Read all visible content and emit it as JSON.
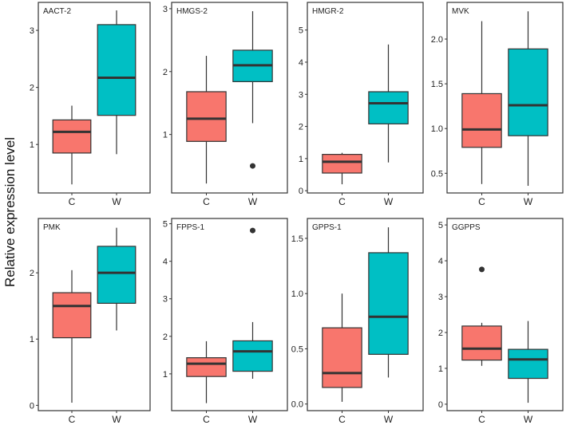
{
  "chart_data": {
    "type": "boxplot",
    "ylabel": "Relative expression level",
    "categories": [
      "C",
      "W"
    ],
    "colors": {
      "C": "#F8766D",
      "W": "#00BFC4"
    },
    "panels": [
      {
        "title": "AACT-2",
        "ylim": [
          0.15,
          3.49
        ],
        "ticks": [
          1,
          2,
          3
        ],
        "tick_labels": [
          "1",
          "2",
          "3"
        ],
        "boxes": [
          {
            "group": "C",
            "low": 0.3,
            "q1": 0.85,
            "median": 1.22,
            "q3": 1.43,
            "high": 1.68,
            "outliers": []
          },
          {
            "group": "W",
            "low": 0.83,
            "q1": 1.51,
            "median": 2.17,
            "q3": 3.1,
            "high": 3.35,
            "outliers": []
          }
        ]
      },
      {
        "title": "HMGS-2",
        "ylim": [
          0.07,
          3.1
        ],
        "ticks": [
          1,
          2,
          3
        ],
        "tick_labels": [
          "1",
          "2",
          "3"
        ],
        "boxes": [
          {
            "group": "C",
            "low": 0.22,
            "q1": 0.89,
            "median": 1.25,
            "q3": 1.68,
            "high": 2.25,
            "outliers": []
          },
          {
            "group": "W",
            "low": 1.18,
            "q1": 1.84,
            "median": 2.1,
            "q3": 2.34,
            "high": 2.96,
            "outliers": [
              0.5
            ]
          }
        ]
      },
      {
        "title": "HMGR-2",
        "ylim": [
          -0.07,
          5.86
        ],
        "ticks": [
          0,
          1,
          2,
          3,
          4,
          5
        ],
        "tick_labels": [
          "0",
          "1",
          "2",
          "3",
          "4",
          "5"
        ],
        "boxes": [
          {
            "group": "C",
            "low": 0.2,
            "q1": 0.55,
            "median": 0.9,
            "q3": 1.13,
            "high": 1.18,
            "outliers": []
          },
          {
            "group": "W",
            "low": 0.88,
            "q1": 2.08,
            "median": 2.72,
            "q3": 3.08,
            "high": 4.55,
            "outliers": []
          }
        ]
      },
      {
        "title": "MVK",
        "ylim": [
          0.28,
          2.41
        ],
        "ticks": [
          0.5,
          1.0,
          1.5,
          2.0
        ],
        "tick_labels": [
          "0.5",
          "1.0",
          "1.5",
          "2.0"
        ],
        "boxes": [
          {
            "group": "C",
            "low": 0.38,
            "q1": 0.79,
            "median": 0.99,
            "q3": 1.39,
            "high": 2.2,
            "outliers": []
          },
          {
            "group": "W",
            "low": 0.36,
            "q1": 0.92,
            "median": 1.26,
            "q3": 1.89,
            "high": 2.31,
            "outliers": []
          }
        ]
      },
      {
        "title": "PMK",
        "ylim": [
          -0.08,
          2.82
        ],
        "ticks": [
          0,
          1,
          2
        ],
        "tick_labels": [
          "0",
          "1",
          "2"
        ],
        "boxes": [
          {
            "group": "C",
            "low": 0.04,
            "q1": 1.02,
            "median": 1.5,
            "q3": 1.7,
            "high": 2.04,
            "outliers": []
          },
          {
            "group": "W",
            "low": 1.13,
            "q1": 1.54,
            "median": 2.0,
            "q3": 2.4,
            "high": 2.68,
            "outliers": []
          }
        ]
      },
      {
        "title": "FPPS-1",
        "ylim": [
          0.02,
          5.14
        ],
        "ticks": [
          1,
          2,
          3,
          4,
          5
        ],
        "tick_labels": [
          "1",
          "2",
          "3",
          "4",
          "5"
        ],
        "boxes": [
          {
            "group": "C",
            "low": 0.22,
            "q1": 0.93,
            "median": 1.27,
            "q3": 1.43,
            "high": 1.87,
            "outliers": []
          },
          {
            "group": "W",
            "low": 0.87,
            "q1": 1.07,
            "median": 1.6,
            "q3": 1.88,
            "high": 2.38,
            "outliers": [
              4.82
            ]
          }
        ]
      },
      {
        "title": "GPPS-1",
        "ylim": [
          -0.06,
          1.68
        ],
        "ticks": [
          0.0,
          0.5,
          1.0,
          1.5
        ],
        "tick_labels": [
          "0.0",
          "0.5",
          "1.0",
          "1.5"
        ],
        "boxes": [
          {
            "group": "C",
            "low": 0.02,
            "q1": 0.15,
            "median": 0.28,
            "q3": 0.69,
            "high": 1.0,
            "outliers": []
          },
          {
            "group": "W",
            "low": 0.24,
            "q1": 0.45,
            "median": 0.79,
            "q3": 1.37,
            "high": 1.6,
            "outliers": []
          }
        ]
      },
      {
        "title": "GGPPS",
        "ylim": [
          -0.18,
          5.18
        ],
        "ticks": [
          0,
          1,
          2,
          3,
          4,
          5
        ],
        "tick_labels": [
          "0",
          "1",
          "2",
          "3",
          "4",
          "5"
        ],
        "boxes": [
          {
            "group": "C",
            "low": 1.07,
            "q1": 1.23,
            "median": 1.55,
            "q3": 2.18,
            "high": 2.27,
            "outliers": [
              3.76
            ]
          },
          {
            "group": "W",
            "low": 0.04,
            "q1": 0.72,
            "median": 1.25,
            "q3": 1.53,
            "high": 2.32,
            "outliers": []
          }
        ]
      }
    ]
  }
}
